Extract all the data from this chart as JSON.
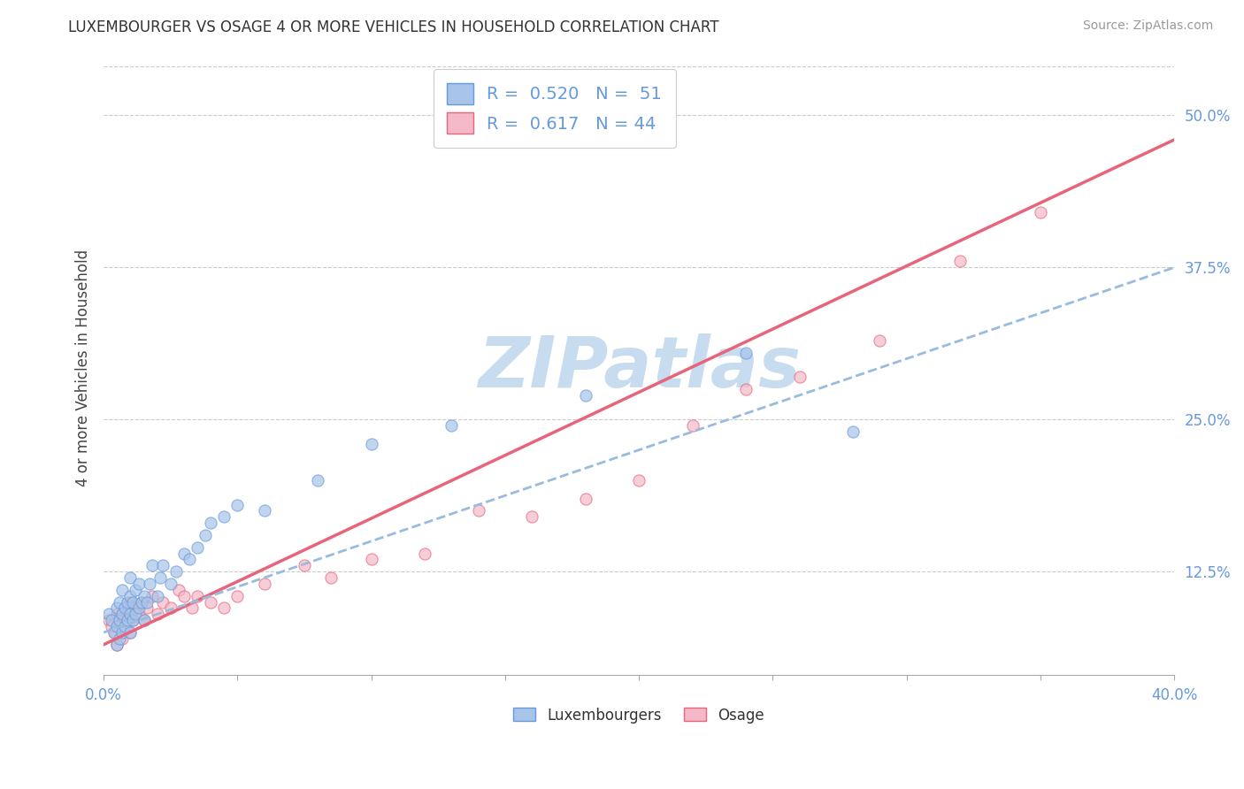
{
  "title": "LUXEMBOURGER VS OSAGE 4 OR MORE VEHICLES IN HOUSEHOLD CORRELATION CHART",
  "source": "Source: ZipAtlas.com",
  "ylabel": "4 or more Vehicles in Household",
  "xlim": [
    0.0,
    0.4
  ],
  "ylim": [
    0.04,
    0.545
  ],
  "legend_R1": "0.520",
  "legend_N1": "51",
  "legend_R2": "0.617",
  "legend_N2": "44",
  "color_blue": "#A8C4E8",
  "color_pink": "#F4B8C8",
  "line_blue": "#6699DD",
  "line_pink": "#E8647A",
  "watermark": "ZIPatlas",
  "watermark_color": "#C8DCF0",
  "background_color": "#FFFFFF",
  "grid_color": "#CCCCCC",
  "blue_scatter_x": [
    0.002,
    0.003,
    0.004,
    0.005,
    0.005,
    0.005,
    0.006,
    0.006,
    0.006,
    0.007,
    0.007,
    0.007,
    0.008,
    0.008,
    0.009,
    0.009,
    0.01,
    0.01,
    0.01,
    0.01,
    0.011,
    0.011,
    0.012,
    0.012,
    0.013,
    0.013,
    0.014,
    0.015,
    0.015,
    0.016,
    0.017,
    0.018,
    0.02,
    0.021,
    0.022,
    0.025,
    0.027,
    0.03,
    0.032,
    0.035,
    0.038,
    0.04,
    0.045,
    0.05,
    0.06,
    0.08,
    0.1,
    0.13,
    0.18,
    0.24,
    0.28
  ],
  "blue_scatter_y": [
    0.09,
    0.085,
    0.075,
    0.065,
    0.08,
    0.095,
    0.07,
    0.085,
    0.1,
    0.075,
    0.09,
    0.11,
    0.08,
    0.095,
    0.085,
    0.1,
    0.075,
    0.09,
    0.105,
    0.12,
    0.085,
    0.1,
    0.09,
    0.11,
    0.095,
    0.115,
    0.1,
    0.085,
    0.105,
    0.1,
    0.115,
    0.13,
    0.105,
    0.12,
    0.13,
    0.115,
    0.125,
    0.14,
    0.135,
    0.145,
    0.155,
    0.165,
    0.17,
    0.18,
    0.175,
    0.2,
    0.23,
    0.245,
    0.27,
    0.305,
    0.24
  ],
  "pink_scatter_x": [
    0.002,
    0.003,
    0.004,
    0.005,
    0.005,
    0.006,
    0.007,
    0.007,
    0.008,
    0.009,
    0.01,
    0.01,
    0.011,
    0.012,
    0.013,
    0.014,
    0.015,
    0.016,
    0.018,
    0.02,
    0.022,
    0.025,
    0.028,
    0.03,
    0.033,
    0.035,
    0.04,
    0.045,
    0.05,
    0.06,
    0.075,
    0.085,
    0.1,
    0.12,
    0.14,
    0.16,
    0.18,
    0.2,
    0.22,
    0.24,
    0.26,
    0.29,
    0.32,
    0.35
  ],
  "pink_scatter_y": [
    0.085,
    0.08,
    0.075,
    0.065,
    0.09,
    0.08,
    0.07,
    0.09,
    0.085,
    0.095,
    0.075,
    0.1,
    0.085,
    0.095,
    0.09,
    0.1,
    0.085,
    0.095,
    0.105,
    0.09,
    0.1,
    0.095,
    0.11,
    0.105,
    0.095,
    0.105,
    0.1,
    0.095,
    0.105,
    0.115,
    0.13,
    0.12,
    0.135,
    0.14,
    0.175,
    0.17,
    0.185,
    0.2,
    0.245,
    0.275,
    0.285,
    0.315,
    0.38,
    0.42
  ],
  "blue_line_x": [
    0.0,
    0.4
  ],
  "blue_line_y": [
    0.075,
    0.375
  ],
  "pink_line_x": [
    0.0,
    0.4
  ],
  "pink_line_y": [
    0.065,
    0.48
  ],
  "xticks": [
    0.0,
    0.05,
    0.1,
    0.15,
    0.2,
    0.25,
    0.3,
    0.35,
    0.4
  ],
  "yticks": [
    0.125,
    0.25,
    0.375,
    0.5
  ]
}
